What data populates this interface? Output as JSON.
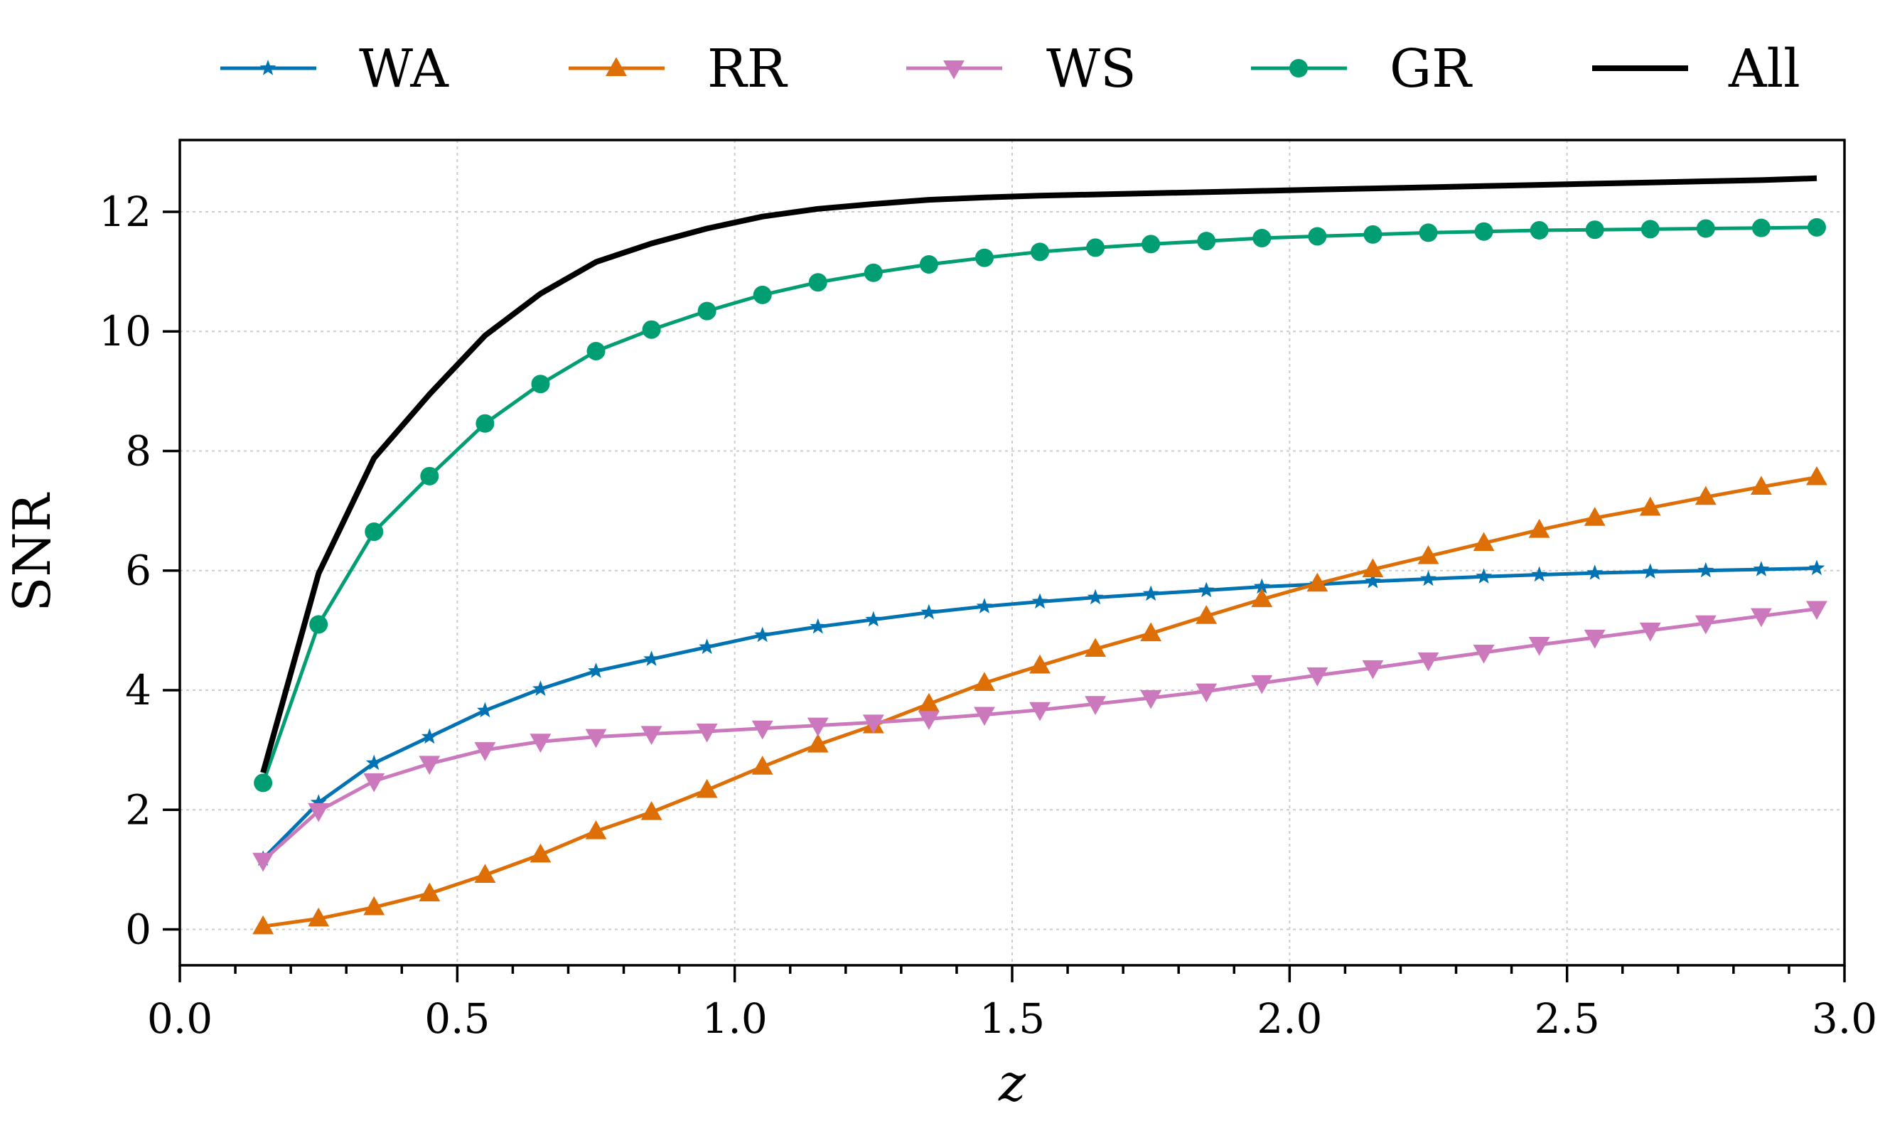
{
  "chart_data": {
    "type": "line",
    "xlabel": "z",
    "ylabel": "SNR",
    "xlim": [
      0.0,
      3.0
    ],
    "ylim": [
      -0.6,
      13.2
    ],
    "xticks": [
      0.0,
      0.5,
      1.0,
      1.5,
      2.0,
      2.5,
      3.0
    ],
    "xtick_labels": [
      "0.0",
      "0.5",
      "1.0",
      "1.5",
      "2.0",
      "2.5",
      "3.0"
    ],
    "yticks": [
      0,
      2,
      4,
      6,
      8,
      10,
      12
    ],
    "ytick_labels": [
      "0",
      "2",
      "4",
      "6",
      "8",
      "10",
      "12"
    ],
    "grid": true,
    "legend_position": "top-outside",
    "x": [
      0.15,
      0.25,
      0.35,
      0.45,
      0.55,
      0.65,
      0.75,
      0.85,
      0.95,
      1.05,
      1.15,
      1.25,
      1.35,
      1.45,
      1.55,
      1.65,
      1.75,
      1.85,
      1.95,
      2.05,
      2.15,
      2.25,
      2.35,
      2.45,
      2.55,
      2.65,
      2.75,
      2.85,
      2.95
    ],
    "series": [
      {
        "name": "WA",
        "color": "#0173b2",
        "marker": "star",
        "values": [
          1.18,
          2.12,
          2.78,
          3.22,
          3.66,
          4.02,
          4.32,
          4.52,
          4.72,
          4.92,
          5.06,
          5.18,
          5.3,
          5.4,
          5.48,
          5.55,
          5.61,
          5.67,
          5.73,
          5.77,
          5.82,
          5.86,
          5.9,
          5.93,
          5.96,
          5.98,
          6.0,
          6.02,
          6.04
        ]
      },
      {
        "name": "RR",
        "color": "#de6f06",
        "marker": "triangle-up",
        "values": [
          0.05,
          0.18,
          0.37,
          0.6,
          0.91,
          1.25,
          1.64,
          1.96,
          2.33,
          2.72,
          3.09,
          3.41,
          3.77,
          4.12,
          4.41,
          4.69,
          4.95,
          5.24,
          5.52,
          5.78,
          6.02,
          6.24,
          6.46,
          6.68,
          6.88,
          7.05,
          7.23,
          7.4,
          7.56
        ]
      },
      {
        "name": "WS",
        "color": "#cc78bc",
        "marker": "triangle-down",
        "values": [
          1.15,
          1.98,
          2.48,
          2.77,
          3.0,
          3.14,
          3.22,
          3.27,
          3.31,
          3.36,
          3.41,
          3.46,
          3.52,
          3.59,
          3.67,
          3.77,
          3.87,
          3.98,
          4.12,
          4.25,
          4.37,
          4.5,
          4.63,
          4.76,
          4.88,
          5.0,
          5.12,
          5.24,
          5.36
        ]
      },
      {
        "name": "GR",
        "color": "#029e73",
        "marker": "circle",
        "values": [
          2.45,
          5.1,
          6.65,
          7.58,
          8.46,
          9.12,
          9.67,
          10.03,
          10.34,
          10.61,
          10.82,
          10.98,
          11.12,
          11.23,
          11.33,
          11.4,
          11.46,
          11.51,
          11.56,
          11.59,
          11.62,
          11.65,
          11.67,
          11.69,
          11.7,
          11.71,
          11.72,
          11.73,
          11.74
        ]
      },
      {
        "name": "All",
        "color": "#000000",
        "marker": "none",
        "values": [
          2.62,
          5.95,
          7.88,
          8.95,
          9.93,
          10.63,
          11.16,
          11.47,
          11.72,
          11.92,
          12.05,
          12.13,
          12.2,
          12.24,
          12.27,
          12.29,
          12.31,
          12.33,
          12.35,
          12.37,
          12.39,
          12.41,
          12.43,
          12.45,
          12.47,
          12.49,
          12.51,
          12.53,
          12.56
        ]
      }
    ]
  }
}
